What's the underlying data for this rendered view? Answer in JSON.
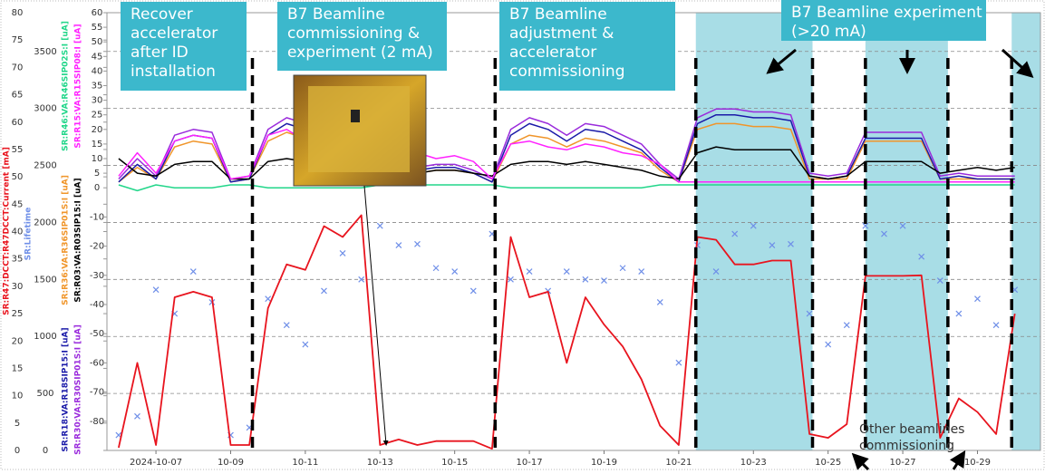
{
  "chart_data": {
    "type": "line",
    "x": [
      "2024-10-06T00:00",
      "2024-10-06T12:00",
      "2024-10-07T00:00",
      "2024-10-07T12:00",
      "2024-10-08T00:00",
      "2024-10-08T12:00",
      "2024-10-09T00:00",
      "2024-10-09T12:00",
      "2024-10-10T00:00",
      "2024-10-10T12:00",
      "2024-10-11T00:00",
      "2024-10-11T12:00",
      "2024-10-12T00:00",
      "2024-10-12T12:00",
      "2024-10-13T00:00",
      "2024-10-13T12:00",
      "2024-10-14T00:00",
      "2024-10-14T12:00",
      "2024-10-15T00:00",
      "2024-10-15T12:00",
      "2024-10-16T00:00",
      "2024-10-16T12:00",
      "2024-10-17T00:00",
      "2024-10-17T12:00",
      "2024-10-18T00:00",
      "2024-10-18T12:00",
      "2024-10-19T00:00",
      "2024-10-19T12:00",
      "2024-10-20T00:00",
      "2024-10-20T12:00",
      "2024-10-21T00:00",
      "2024-10-21T12:00",
      "2024-10-22T00:00",
      "2024-10-22T12:00",
      "2024-10-23T00:00",
      "2024-10-23T12:00",
      "2024-10-24T00:00",
      "2024-10-24T12:00",
      "2024-10-25T00:00",
      "2024-10-25T12:00",
      "2024-10-26T00:00",
      "2024-10-26T12:00",
      "2024-10-27T00:00",
      "2024-10-27T12:00",
      "2024-10-28T00:00",
      "2024-10-28T12:00",
      "2024-10-29T00:00",
      "2024-10-29T12:00",
      "2024-10-30T00:00"
    ],
    "xlim": [
      "2024-10-05T16:30",
      "2024-10-30T16:30"
    ],
    "xticks": [
      {
        "value": "2024-10-07T00:00",
        "label": "2024-10-07"
      },
      {
        "value": "2024-10-09T00:00",
        "label": "10-09"
      },
      {
        "value": "2024-10-11T00:00",
        "label": "10-11"
      },
      {
        "value": "2024-10-13T00:00",
        "label": "10-13"
      },
      {
        "value": "2024-10-15T00:00",
        "label": "10-15"
      },
      {
        "value": "2024-10-17T00:00",
        "label": "10-17"
      },
      {
        "value": "2024-10-19T00:00",
        "label": "10-19"
      },
      {
        "value": "2024-10-21T00:00",
        "label": "10-21"
      },
      {
        "value": "2024-10-23T00:00",
        "label": "10-23"
      },
      {
        "value": "2024-10-25T00:00",
        "label": "10-25"
      },
      {
        "value": "2024-10-27T00:00",
        "label": "10-27"
      },
      {
        "value": "2024-10-29T00:00",
        "label": "10-29"
      }
    ],
    "ylim": [
      0,
      80
    ],
    "yticks": [
      0,
      5,
      10,
      15,
      20,
      25,
      30,
      35,
      40,
      45,
      50,
      55,
      60,
      65,
      70,
      75,
      80
    ],
    "y2lim": [
      0,
      3840
    ],
    "y2ticks": [
      0,
      500,
      1000,
      1500,
      2000,
      2500,
      3000,
      3500
    ],
    "y3lim": [
      -90,
      60
    ],
    "y3ticks": [
      -80,
      -70,
      -60,
      -50,
      -40,
      -30,
      -20,
      -10,
      0,
      5,
      10,
      15,
      20,
      25,
      30,
      35,
      40,
      45,
      50,
      55,
      60
    ],
    "grid": true,
    "shaded": [
      [
        "2024-10-21T11:00",
        "2024-10-24T14:00"
      ],
      [
        "2024-10-26T00:00",
        "2024-10-28T05:00"
      ],
      [
        "2024-10-29T22:00",
        "2024-10-30T16:30"
      ]
    ],
    "shade_color": "#a8dde6",
    "vlines": [
      "2024-10-09T14:00",
      "2024-10-16T02:00",
      "2024-10-21T11:00",
      "2024-10-24T14:00",
      "2024-10-26T00:00",
      "2024-10-28T05:00",
      "2024-10-29T22:00"
    ],
    "annotations": [
      {
        "lines": [
          "Recover",
          "accelerator",
          "after ID",
          "installation"
        ]
      },
      {
        "lines": [
          "B7 Beamline",
          "commissioning &",
          "experiment (2 mA)"
        ]
      },
      {
        "lines": [
          "B7 Beamline",
          "adjustment &",
          "accelerator",
          "commissioning"
        ]
      },
      {
        "lines": [
          "B7 Beamline experiment",
          "(>20 mA)"
        ]
      }
    ],
    "note": {
      "lines": [
        "Other beamlines",
        "commissioning"
      ]
    },
    "series": [
      {
        "name": "SR:Lifetime",
        "color": "#6f8fe8",
        "axis": "y2",
        "style": "scatter",
        "values": [
          135,
          300,
          1410,
          1200,
          1570,
          1300,
          135,
          200,
          1330,
          1100,
          930,
          1400,
          1730,
          1500,
          1970,
          1800,
          1810,
          1600,
          1570,
          1400,
          1900,
          1500,
          1570,
          1400,
          1570,
          1500,
          1490,
          1600,
          1570,
          1300,
          770,
          1800,
          1570,
          1900,
          1970,
          1800,
          1810,
          1200,
          930,
          1100,
          1970,
          1900,
          1970,
          1700,
          1490,
          1200,
          1330,
          1100,
          1410
        ]
      },
      {
        "name": "SR:R46:VA:R46SIP02S:I [uA]",
        "color": "#22d68a",
        "axis": "y3",
        "style": "line",
        "values": [
          1,
          -1,
          1,
          0,
          0,
          0,
          1,
          1,
          0,
          0,
          0,
          0,
          0,
          0,
          1,
          1,
          1,
          1,
          1,
          1,
          1,
          0,
          0,
          0,
          0,
          0,
          0,
          0,
          0,
          1,
          1,
          1,
          1,
          1,
          1,
          1,
          1,
          1,
          1,
          1,
          1,
          1,
          1,
          1,
          1,
          1,
          1,
          1,
          1
        ]
      },
      {
        "name": "SR:R36:VA:R36SIP01S:I [uA]",
        "color": "#f0952a",
        "axis": "y3",
        "style": "line",
        "values": [
          2,
          7,
          3,
          14,
          16,
          15,
          2,
          3,
          16,
          19,
          17,
          20,
          18,
          19,
          6,
          5,
          5,
          6,
          6,
          5,
          2,
          15,
          18,
          17,
          14,
          17,
          16,
          14,
          12,
          6,
          2,
          20,
          22,
          22,
          21,
          21,
          20,
          3,
          3,
          3,
          16,
          16,
          16,
          16,
          3,
          3,
          3,
          3,
          3
        ]
      },
      {
        "name": "SR:R18:VA:R18SIP15:I [uA]",
        "color": "#1a1aa8",
        "axis": "y3",
        "style": "line",
        "values": [
          2,
          8,
          3,
          16,
          18,
          17,
          2,
          3,
          18,
          22,
          20,
          23,
          21,
          22,
          7,
          5,
          6,
          7,
          7,
          5,
          2,
          18,
          22,
          20,
          16,
          20,
          19,
          16,
          13,
          7,
          2,
          22,
          25,
          25,
          24,
          24,
          23,
          4,
          3,
          4,
          17,
          17,
          17,
          17,
          3,
          4,
          3,
          3,
          3
        ]
      },
      {
        "name": "SR:R30:VA:R30SIP01S:I [uA]",
        "color": "#9a2bdc",
        "axis": "y3",
        "style": "line",
        "values": [
          3,
          10,
          4,
          18,
          20,
          19,
          3,
          4,
          20,
          24,
          22,
          25,
          23,
          24,
          8,
          6,
          7,
          8,
          8,
          6,
          3,
          20,
          24,
          22,
          18,
          22,
          21,
          18,
          15,
          8,
          3,
          24,
          27,
          27,
          26,
          26,
          25,
          5,
          4,
          5,
          19,
          19,
          19,
          19,
          4,
          5,
          4,
          4,
          4
        ]
      },
      {
        "name": "SR:R03:VA:R03SIP15:I [uA]",
        "color": "#000000",
        "axis": "y3",
        "style": "line",
        "values": [
          10,
          5,
          4,
          8,
          9,
          9,
          3,
          3,
          9,
          10,
          9,
          11,
          10,
          10,
          6,
          5,
          5,
          6,
          6,
          5,
          4,
          8,
          9,
          9,
          8,
          9,
          8,
          7,
          6,
          4,
          3,
          12,
          14,
          13,
          13,
          13,
          13,
          4,
          3,
          4,
          9,
          9,
          9,
          9,
          5,
          6,
          7,
          6,
          7
        ]
      },
      {
        "name": "SR:R15:VA:R15SIP08:I [uA]",
        "color": "#ff22ff",
        "axis": "y3",
        "style": "line",
        "values": [
          4,
          12,
          5,
          16,
          18,
          17,
          3,
          4,
          18,
          20,
          16,
          19,
          17,
          18,
          10,
          8,
          12,
          10,
          11,
          9,
          3,
          15,
          16,
          14,
          13,
          15,
          14,
          12,
          11,
          8,
          2,
          2,
          2,
          2,
          2,
          2,
          2,
          2,
          2,
          2,
          2,
          2,
          2,
          2,
          2,
          2,
          2,
          2,
          2
        ]
      },
      {
        "name": "SR:R47:DCCT:R47DCCT:Current [mA]",
        "color": "#e8141e",
        "axis": "y",
        "style": "line",
        "values": [
          0.5,
          16,
          1,
          28,
          29,
          28,
          1,
          1,
          26,
          34,
          33,
          41,
          39,
          43,
          1,
          2,
          1,
          1.7,
          1.7,
          1.7,
          0.3,
          39,
          28,
          29,
          16,
          28,
          23,
          19,
          13,
          4.5,
          1,
          39,
          38.5,
          34,
          34,
          34.7,
          34.7,
          3,
          2.3,
          4.8,
          31.9,
          31.9,
          31.9,
          32,
          2.3,
          9.5,
          7,
          3,
          25
        ]
      }
    ]
  }
}
